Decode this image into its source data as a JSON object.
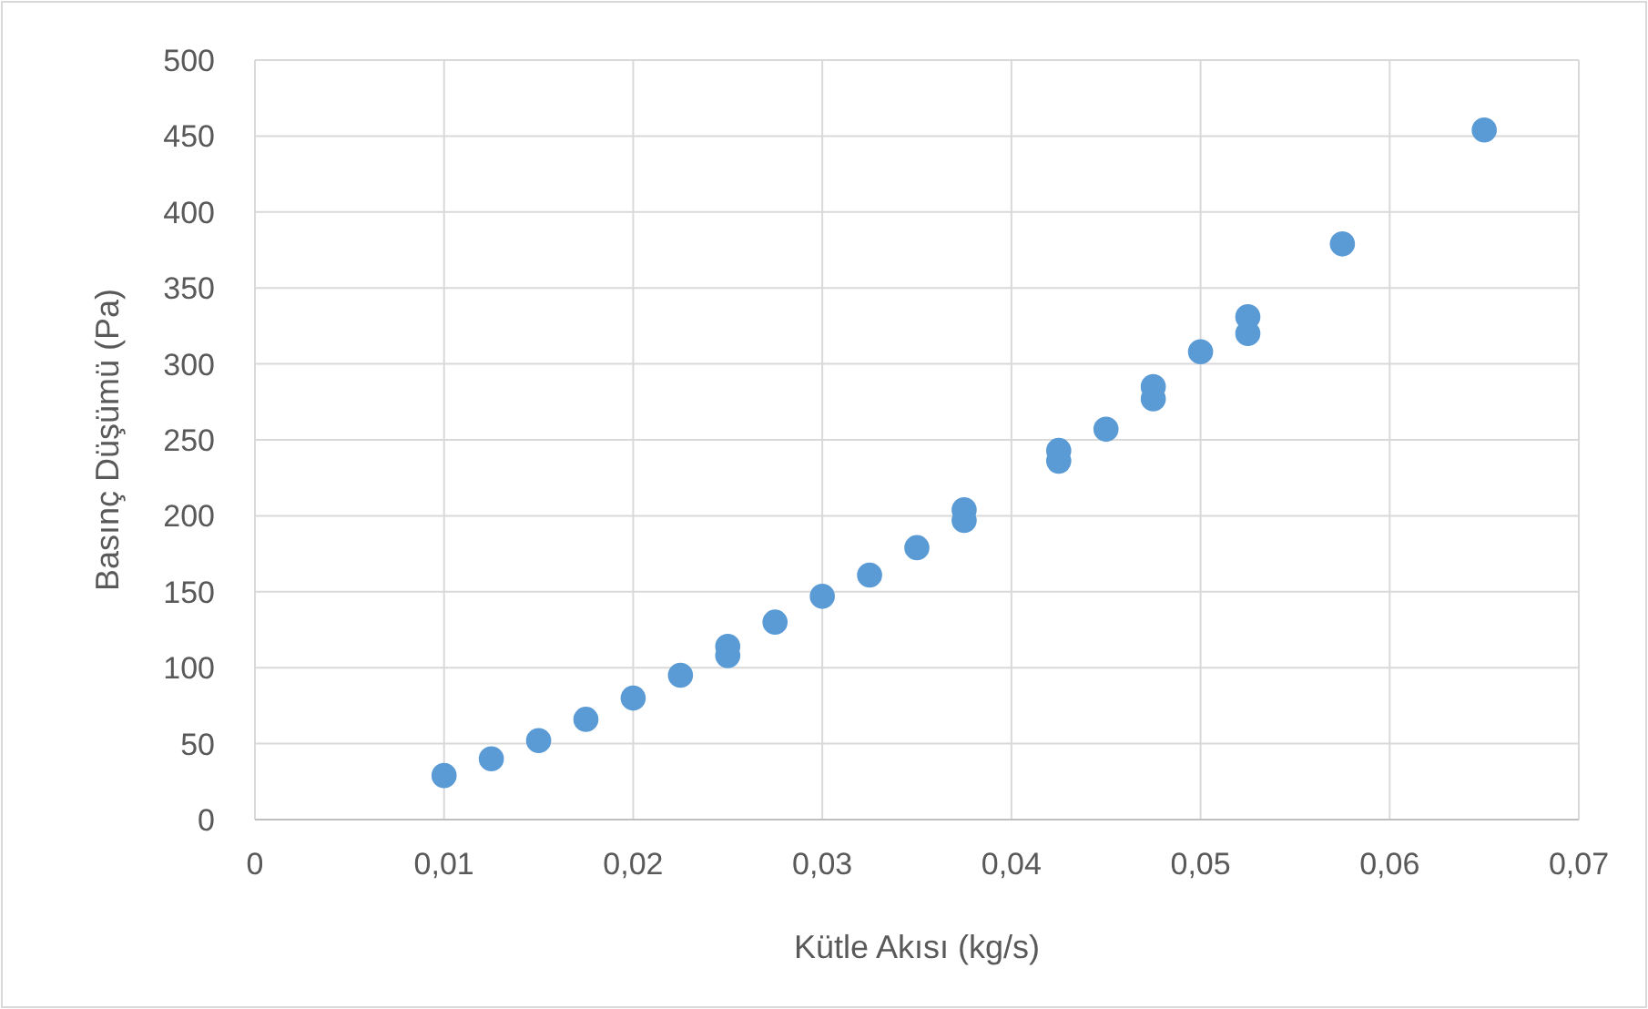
{
  "chart_data": {
    "type": "scatter",
    "xlabel": "Kütle Akısı (kg/s)",
    "ylabel": "Basınç Düşümü (Pa)",
    "x": [
      0.01,
      0.0125,
      0.015,
      0.0175,
      0.02,
      0.0225,
      0.025,
      0.025,
      0.0275,
      0.03,
      0.0325,
      0.035,
      0.0375,
      0.0375,
      0.0425,
      0.0425,
      0.045,
      0.0475,
      0.0475,
      0.05,
      0.0525,
      0.0525,
      0.0575,
      0.065
    ],
    "series": [
      {
        "color": "#5b9bd5",
        "values": [
          29,
          40,
          52,
          66,
          80,
          95,
          108,
          114,
          130,
          147,
          161,
          179,
          197,
          204,
          236,
          243,
          257,
          277,
          285,
          308,
          320,
          331,
          379,
          454
        ]
      }
    ],
    "xlim": [
      0,
      0.07
    ],
    "xticks": [
      {
        "value": 0,
        "label": "0"
      },
      {
        "value": 0.01,
        "label": "0,01"
      },
      {
        "value": 0.02,
        "label": "0,02"
      },
      {
        "value": 0.03,
        "label": "0,03"
      },
      {
        "value": 0.04,
        "label": "0,04"
      },
      {
        "value": 0.05,
        "label": "0,05"
      },
      {
        "value": 0.06,
        "label": "0,06"
      },
      {
        "value": 0.07,
        "label": "0,07"
      }
    ],
    "ylim": [
      0,
      500
    ],
    "yticks": [
      0,
      50,
      100,
      150,
      200,
      250,
      300,
      350,
      400,
      450,
      500
    ],
    "grid": true,
    "marker": "circle"
  }
}
